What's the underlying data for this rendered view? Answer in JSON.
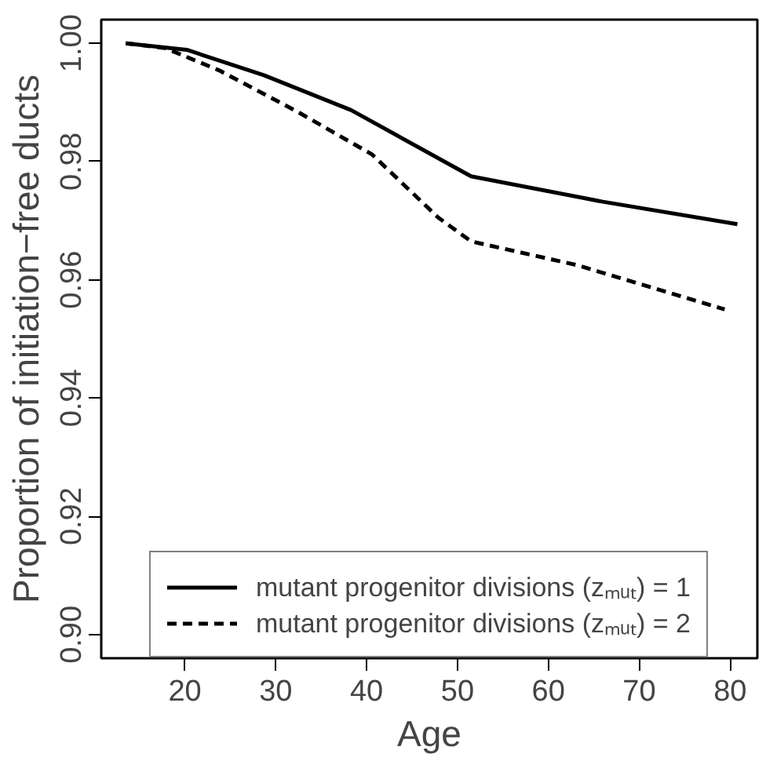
{
  "chart_data": {
    "type": "line",
    "xlabel": "Age",
    "ylabel": "Proportion of initiation−free ducts",
    "xlim": [
      10.8,
      83
    ],
    "ylim": [
      0.896,
      1.004
    ],
    "xticks": [
      20,
      30,
      40,
      50,
      60,
      70,
      80
    ],
    "yticks": [
      {
        "value": 0.9,
        "label": "0.90"
      },
      {
        "value": 0.92,
        "label": "0.92"
      },
      {
        "value": 0.94,
        "label": "0.94"
      },
      {
        "value": 0.96,
        "label": "0.96"
      },
      {
        "value": 0.98,
        "label": "0.98"
      },
      {
        "value": 1.0,
        "label": "1.00"
      }
    ],
    "series": [
      {
        "name": "mutant progenitor divisions (zₘᵤₜ) = 1",
        "color": "#000000",
        "line_style": "solid",
        "x": [
          13.5,
          20.2,
          28.7,
          38.3,
          51.5,
          66,
          80.8
        ],
        "values": [
          1.0,
          0.9989,
          0.9946,
          0.9887,
          0.9775,
          0.9732,
          0.9694
        ]
      },
      {
        "name": "mutant progenitor divisions (zₘᵤₜ) = 2",
        "color": "#000000",
        "line_style": "dashed",
        "x": [
          13.5,
          17.8,
          23.8,
          32.3,
          40.6,
          47.9,
          51.5,
          63.1,
          79.4
        ],
        "values": [
          1.0,
          0.9992,
          0.9954,
          0.9885,
          0.9812,
          0.9705,
          0.9665,
          0.9625,
          0.955
        ]
      }
    ],
    "grid": false,
    "legend": "bottom",
    "marker": "none"
  }
}
